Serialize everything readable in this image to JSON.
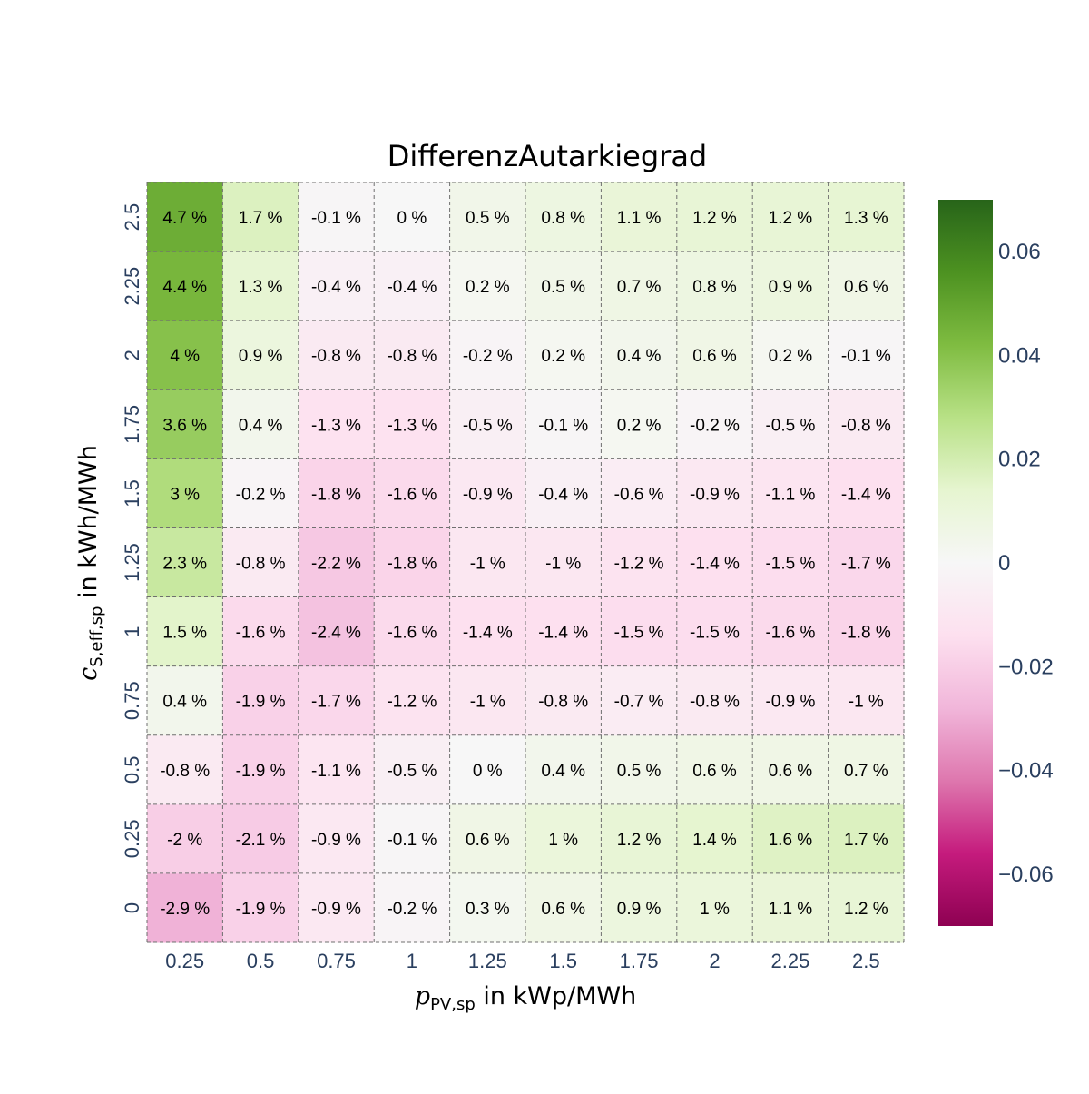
{
  "chart_data": {
    "type": "heatmap",
    "title": "DifferenzAutarkiegrad",
    "xlabel": {
      "symbol": "p",
      "subscript": "PV,sp",
      "suffix": " in kWp/MWh"
    },
    "ylabel": {
      "symbol": "c",
      "subscript": "S,eff,sp",
      "suffix": " in kWh/MWh"
    },
    "x_categories": [
      "0.25",
      "0.5",
      "0.75",
      "1",
      "1.25",
      "1.5",
      "1.75",
      "2",
      "2.25",
      "2.5"
    ],
    "y_categories": [
      "0",
      "0.25",
      "0.5",
      "0.75",
      "1",
      "1.25",
      "1.5",
      "1.75",
      "2",
      "2.25",
      "2.5"
    ],
    "values": [
      [
        -0.029,
        -0.019,
        -0.009,
        -0.002,
        0.003,
        0.006,
        0.009,
        0.01,
        0.011,
        0.012
      ],
      [
        -0.02,
        -0.021,
        -0.009,
        -0.001,
        0.006,
        0.01,
        0.012,
        0.014,
        0.016,
        0.017
      ],
      [
        -0.008,
        -0.019,
        -0.011,
        -0.005,
        0.0,
        0.004,
        0.005,
        0.006,
        0.006,
        0.007
      ],
      [
        0.004,
        -0.019,
        -0.017,
        -0.012,
        -0.01,
        -0.008,
        -0.007,
        -0.008,
        -0.009,
        -0.01
      ],
      [
        0.015,
        -0.016,
        -0.024,
        -0.016,
        -0.014,
        -0.014,
        -0.015,
        -0.015,
        -0.016,
        -0.018
      ],
      [
        0.023,
        -0.008,
        -0.022,
        -0.018,
        -0.01,
        -0.01,
        -0.012,
        -0.014,
        -0.015,
        -0.017
      ],
      [
        0.03,
        -0.002,
        -0.018,
        -0.016,
        -0.009,
        -0.004,
        -0.006,
        -0.009,
        -0.011,
        -0.014
      ],
      [
        0.036,
        0.004,
        -0.013,
        -0.013,
        -0.005,
        -0.001,
        0.002,
        -0.002,
        -0.005,
        -0.008
      ],
      [
        0.04,
        0.009,
        -0.008,
        -0.008,
        -0.002,
        0.002,
        0.004,
        0.006,
        0.002,
        -0.001
      ],
      [
        0.044,
        0.013,
        -0.004,
        -0.004,
        0.002,
        0.005,
        0.007,
        0.008,
        0.009,
        0.006
      ],
      [
        0.047,
        0.017,
        -0.001,
        0.0,
        0.005,
        0.008,
        0.011,
        0.012,
        0.012,
        0.013
      ]
    ],
    "labels": [
      [
        "-2.9 %",
        "-1.9 %",
        "-0.9 %",
        "-0.2 %",
        "0.3 %",
        "0.6 %",
        "0.9 %",
        "1 %",
        "1.1 %",
        "1.2 %"
      ],
      [
        "-2 %",
        "-2.1 %",
        "-0.9 %",
        "-0.1 %",
        "0.6 %",
        "1 %",
        "1.2 %",
        "1.4 %",
        "1.6 %",
        "1.7 %"
      ],
      [
        "-0.8 %",
        "-1.9 %",
        "-1.1 %",
        "-0.5 %",
        "0 %",
        "0.4 %",
        "0.5 %",
        "0.6 %",
        "0.6 %",
        "0.7 %"
      ],
      [
        "0.4 %",
        "-1.9 %",
        "-1.7 %",
        "-1.2 %",
        "-1 %",
        "-0.8 %",
        "-0.7 %",
        "-0.8 %",
        "-0.9 %",
        "-1 %"
      ],
      [
        "1.5 %",
        "-1.6 %",
        "-2.4 %",
        "-1.6 %",
        "-1.4 %",
        "-1.4 %",
        "-1.5 %",
        "-1.5 %",
        "-1.6 %",
        "-1.8 %"
      ],
      [
        "2.3 %",
        "-0.8 %",
        "-2.2 %",
        "-1.8 %",
        "-1 %",
        "-1 %",
        "-1.2 %",
        "-1.4 %",
        "-1.5 %",
        "-1.7 %"
      ],
      [
        "3 %",
        "-0.2 %",
        "-1.8 %",
        "-1.6 %",
        "-0.9 %",
        "-0.4 %",
        "-0.6 %",
        "-0.9 %",
        "-1.1 %",
        "-1.4 %"
      ],
      [
        "3.6 %",
        "0.4 %",
        "-1.3 %",
        "-1.3 %",
        "-0.5 %",
        "-0.1 %",
        "0.2 %",
        "-0.2 %",
        "-0.5 %",
        "-0.8 %"
      ],
      [
        "4 %",
        "0.9 %",
        "-0.8 %",
        "-0.8 %",
        "-0.2 %",
        "0.2 %",
        "0.4 %",
        "0.6 %",
        "0.2 %",
        "-0.1 %"
      ],
      [
        "4.4 %",
        "1.3 %",
        "-0.4 %",
        "-0.4 %",
        "0.2 %",
        "0.5 %",
        "0.7 %",
        "0.8 %",
        "0.9 %",
        "0.6 %"
      ],
      [
        "4.7 %",
        "1.7 %",
        "-0.1 %",
        "0 %",
        "0.5 %",
        "0.8 %",
        "1.1 %",
        "1.2 %",
        "1.2 %",
        "1.3 %"
      ]
    ],
    "zmin": -0.07,
    "zmax": 0.07,
    "colorscale": "PiYG",
    "colorscale_stops": [
      "#8e0152",
      "#c51b7d",
      "#de77ae",
      "#f1b6da",
      "#fde0ef",
      "#f7f7f7",
      "#e6f5d0",
      "#b8e186",
      "#7fbc41",
      "#4d9221",
      "#276419"
    ],
    "colorbar_ticks": [
      {
        "value": 0.06,
        "label": "0.06"
      },
      {
        "value": 0.04,
        "label": "0.04"
      },
      {
        "value": 0.02,
        "label": "0.02"
      },
      {
        "value": 0,
        "label": "0"
      },
      {
        "value": -0.02,
        "label": "−0.02"
      },
      {
        "value": -0.04,
        "label": "−0.04"
      },
      {
        "value": -0.06,
        "label": "−0.06"
      }
    ],
    "grid": true,
    "grid_style": "dashed",
    "colorbar": "right"
  }
}
